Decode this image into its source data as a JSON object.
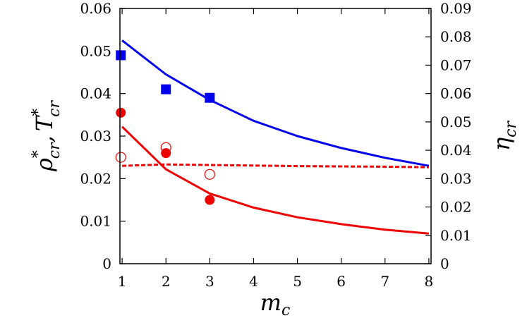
{
  "chart_data": {
    "type": "line",
    "title": "",
    "xlabel": {
      "main": "m",
      "sub": "c"
    },
    "ylabel_left": {
      "rho": "ρ",
      "t": "T",
      "sub": "cr",
      "sup": "*",
      "sep": ","
    },
    "ylabel_right": {
      "main": "η",
      "sub": "cr"
    },
    "xlim": [
      0.95,
      8.05
    ],
    "ylim_left": [
      0,
      0.06
    ],
    "ylim_right": [
      0,
      0.09
    ],
    "x_ticks": [
      1,
      2,
      3,
      4,
      5,
      6,
      7,
      8
    ],
    "y_left_ticks": [
      "0",
      "0.01",
      "0.02",
      "0.03",
      "0.04",
      "0.05",
      "0.06"
    ],
    "y_right_ticks": [
      "0",
      "0.01",
      "0.02",
      "0.03",
      "0.04",
      "0.05",
      "0.06",
      "0.07",
      "0.08",
      "0.09"
    ],
    "grid": false,
    "colors": {
      "blue": "#0000ee",
      "red": "#ee0000"
    },
    "lines": [
      {
        "id": "blue-solid",
        "color": "#0000ee",
        "dash": "solid",
        "axis": "left",
        "x": [
          1,
          2,
          3,
          4,
          5,
          6,
          7,
          8
        ],
        "y": [
          0.0525,
          0.0445,
          0.0385,
          0.0336,
          0.03,
          0.0272,
          0.0249,
          0.023
        ]
      },
      {
        "id": "red-solid",
        "color": "#ee0000",
        "dash": "solid",
        "axis": "left",
        "x": [
          1,
          2,
          3,
          4,
          5,
          6,
          7,
          8
        ],
        "y": [
          0.0322,
          0.0222,
          0.0165,
          0.0132,
          0.0109,
          0.0093,
          0.008,
          0.0071
        ]
      },
      {
        "id": "red-dashed",
        "color": "#ee0000",
        "dash": "dashed",
        "axis": "right",
        "x": [
          1,
          2,
          3,
          4,
          5,
          6,
          7,
          8
        ],
        "y": [
          0.0345,
          0.035,
          0.0348,
          0.0346,
          0.0344,
          0.0343,
          0.0342,
          0.034
        ]
      }
    ],
    "points": [
      {
        "id": "blue-squares",
        "marker": "square-filled",
        "color": "#0000ee",
        "axis": "left",
        "x": [
          0.97,
          2,
          3
        ],
        "y": [
          0.049,
          0.041,
          0.039
        ]
      },
      {
        "id": "red-filled-circles",
        "marker": "circle-filled",
        "color": "#ee0000",
        "axis": "left",
        "x": [
          0.97,
          2,
          3
        ],
        "y": [
          0.0355,
          0.026,
          0.015
        ]
      },
      {
        "id": "red-open-circles",
        "marker": "circle-open",
        "color": "#ee0000",
        "axis": "left",
        "x": [
          0.97,
          2,
          3
        ],
        "y": [
          0.025,
          0.0273,
          0.021
        ]
      }
    ]
  }
}
